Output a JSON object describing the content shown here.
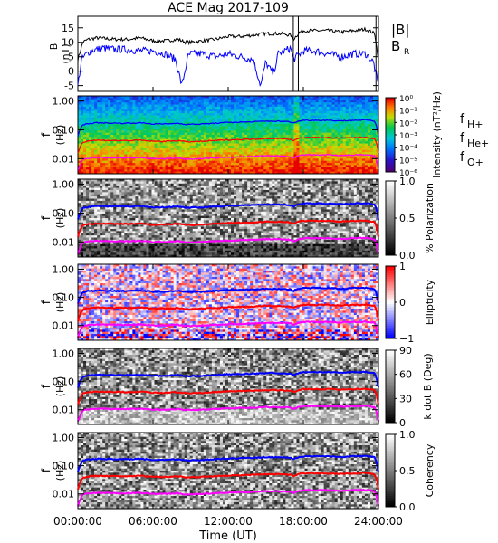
{
  "chart_data": {
    "type": "heatmap",
    "title": "ACE Mag 2017-109",
    "xlabel": "Time (UT)",
    "x_ticks": [
      "00:00:00",
      "06:00:00",
      "12:00:00",
      "18:00:00",
      "24:00:00"
    ],
    "xlim_hours": [
      0,
      24
    ],
    "legend_B": [
      "|B|",
      "B_R"
    ],
    "legend_f": [
      "f_H+",
      "f_He+",
      "f_O+"
    ],
    "colors": {
      "B_mag": "#000000",
      "B_R": "#0000ff",
      "fH": "#0000ff",
      "fHe": "#ff0000",
      "fO": "#ff00ff"
    },
    "panels": [
      {
        "name": "B-field",
        "ylabel": "B (nT)",
        "ylim": [
          -7,
          19
        ],
        "yticks": [
          "15",
          "10",
          "5",
          "0",
          "-5"
        ],
        "series": [
          {
            "name": "|B|",
            "x": [
              0,
              0.4,
              0.8,
              1.5,
              3,
              4,
              5,
              6,
              7,
              8,
              8.6,
              9,
              10,
              11,
              12,
              13,
              14,
              15,
              16,
              17,
              17.2,
              17.7,
              18,
              19,
              20,
              21,
              22,
              23,
              23.7,
              24
            ],
            "values": [
              4,
              10,
              11,
              11.5,
              11,
              11,
              11.5,
              10.5,
              10.5,
              11,
              10,
              10,
              10.5,
              11,
              12,
              12,
              12.5,
              13,
              13,
              12.5,
              11,
              13.5,
              14,
              14,
              14,
              13.5,
              14,
              14.5,
              13,
              4
            ]
          },
          {
            "name": "B_R",
            "x": [
              0,
              0.3,
              0.7,
              1,
              2,
              3,
              4,
              5,
              6,
              7,
              7.8,
              8.3,
              8.8,
              9,
              10,
              11,
              12,
              13,
              14,
              14.6,
              15,
              15.6,
              16,
              17,
              17.2,
              18,
              19,
              20,
              21,
              22,
              23,
              23.6,
              24
            ],
            "values": [
              -5,
              4,
              6,
              7,
              8,
              7.5,
              7.5,
              7,
              7,
              6,
              4,
              -5,
              5,
              6,
              6,
              5,
              6,
              5,
              4,
              -5,
              3,
              -1,
              6,
              8,
              4,
              7,
              7,
              6,
              5,
              6,
              6,
              3,
              -5
            ]
          }
        ]
      },
      {
        "name": "Intensity",
        "cbar_label": "Intensity (nT²/Hz)",
        "cbar_ticks": [
          "10⁰",
          "10⁻¹",
          "10⁻²",
          "10⁻³",
          "10⁻⁴",
          "10⁻⁵",
          "10⁻⁶"
        ],
        "colormap": "rainbow"
      },
      {
        "name": "Polarization",
        "cbar_label": "% Polarization",
        "cbar_ticks": [
          "1.0",
          "0.5",
          "0.0"
        ],
        "colormap": "gray"
      },
      {
        "name": "Ellipticity",
        "cbar_label": "Ellipticity",
        "cbar_ticks": [
          "1",
          "0",
          "−1"
        ],
        "colormap": "bwr"
      },
      {
        "name": "k dot B",
        "cbar_label": "k dot B (Deg)",
        "cbar_ticks": [
          "90",
          "60",
          "30",
          "0"
        ],
        "colormap": "gray"
      },
      {
        "name": "Coherency",
        "cbar_label": "Coherency",
        "cbar_ticks": [
          "1.0",
          "0.5",
          "0.0"
        ],
        "colormap": "gray"
      }
    ],
    "freq_ylabel": "f (Hz)",
    "freq_yticks": [
      "1.00",
      "0.10",
      "0.01"
    ],
    "freq_ylim": [
      0.003,
      1.5
    ],
    "gyrofreq": {
      "x": [
        0,
        0.4,
        0.8,
        1.5,
        3,
        4,
        5,
        6,
        7,
        8,
        8.6,
        9,
        10,
        11,
        12,
        13,
        14,
        15,
        16,
        17,
        17.2,
        17.7,
        18,
        19,
        20,
        21,
        22,
        23,
        23.7,
        24
      ],
      "fH": [
        0.06,
        0.15,
        0.165,
        0.175,
        0.17,
        0.17,
        0.175,
        0.16,
        0.16,
        0.17,
        0.155,
        0.155,
        0.16,
        0.17,
        0.18,
        0.185,
        0.19,
        0.2,
        0.2,
        0.19,
        0.17,
        0.205,
        0.215,
        0.215,
        0.215,
        0.205,
        0.215,
        0.22,
        0.2,
        0.06
      ]
    }
  }
}
